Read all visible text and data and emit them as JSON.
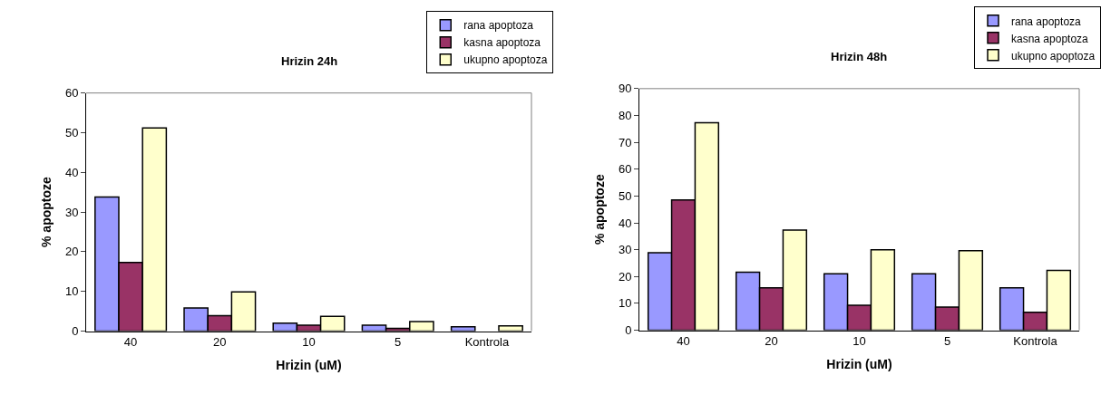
{
  "chart_data": [
    {
      "type": "bar",
      "title": "Hrizin 24h",
      "xlabel": "Hrizin (uM)",
      "ylabel": "% apoptoze",
      "categories": [
        "40",
        "20",
        "10",
        "5",
        "Kontrola"
      ],
      "series": [
        {
          "name": "rana apoptoza",
          "color": "#9999ff",
          "values": [
            33.8,
            5.8,
            2.0,
            1.5,
            1.1
          ]
        },
        {
          "name": "kasna apoptoza",
          "color": "#993366",
          "values": [
            17.3,
            3.9,
            1.5,
            0.7,
            null
          ]
        },
        {
          "name": "ukupno apoptoza",
          "color": "#ffffcc",
          "values": [
            51.2,
            9.9,
            3.7,
            2.4,
            1.3
          ]
        }
      ],
      "ylim": [
        0,
        60
      ],
      "yticks": [
        0,
        10,
        20,
        30,
        40,
        50,
        60
      ],
      "grid": false,
      "legend": "top right"
    },
    {
      "type": "bar",
      "title": "Hrizin 48h",
      "xlabel": "Hrizin (uM)",
      "ylabel": "% apoptoze",
      "categories": [
        "40",
        "20",
        "10",
        "5",
        "Kontrola"
      ],
      "series": [
        {
          "name": "rana apoptoza",
          "color": "#9999ff",
          "values": [
            28.9,
            21.6,
            21.0,
            21.0,
            15.8
          ]
        },
        {
          "name": "kasna apoptoza",
          "color": "#993366",
          "values": [
            48.5,
            15.8,
            9.3,
            8.6,
            6.7
          ]
        },
        {
          "name": "ukupno apoptoza",
          "color": "#ffffcc",
          "values": [
            77.3,
            37.3,
            30.0,
            29.6,
            22.3
          ]
        }
      ],
      "ylim": [
        0,
        90
      ],
      "yticks": [
        0,
        10,
        20,
        30,
        40,
        50,
        60,
        70,
        80,
        90
      ],
      "grid": false,
      "legend": "top right"
    }
  ]
}
